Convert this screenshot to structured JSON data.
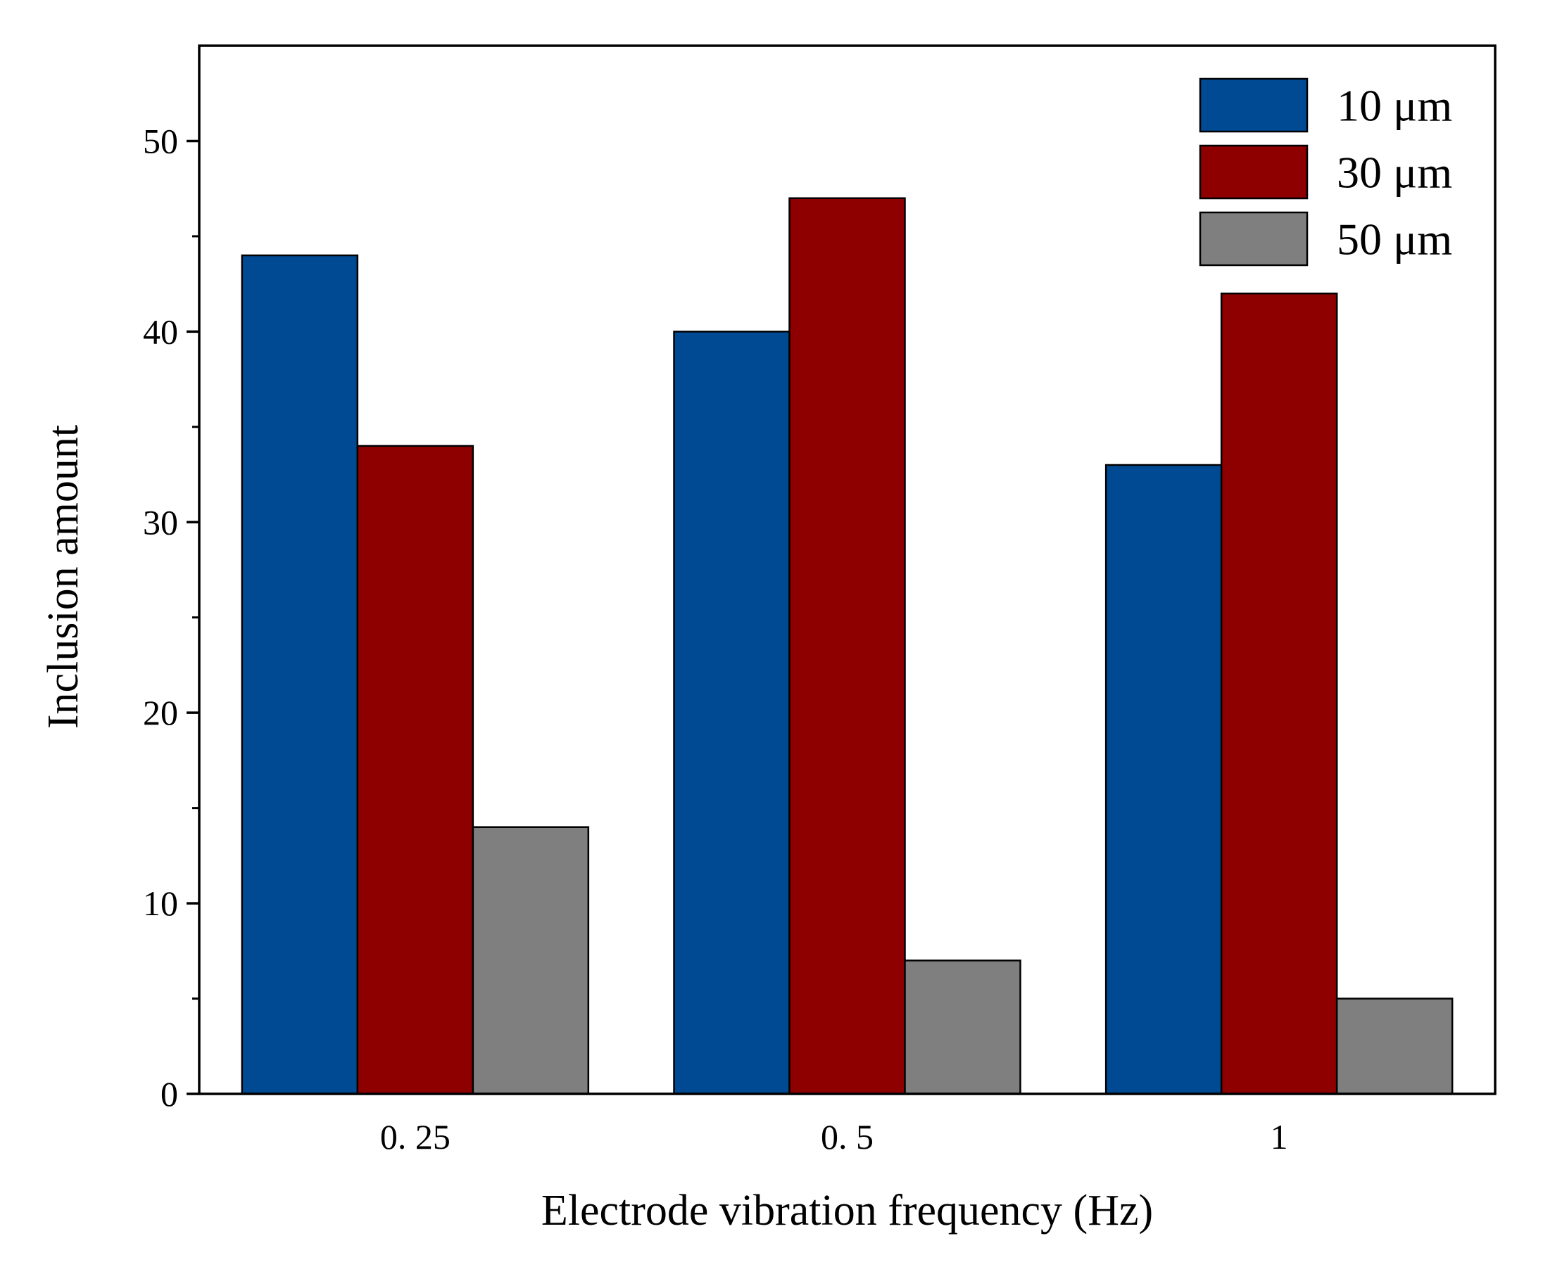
{
  "chart_data": {
    "type": "bar",
    "title": "",
    "xlabel": "Electrode vibration frequency (Hz)",
    "ylabel": "Inclusion amount",
    "categories": [
      "0. 25",
      "0. 5",
      "1"
    ],
    "series": [
      {
        "name": "10 μm",
        "values": [
          44,
          40,
          33
        ],
        "color": "#004A94"
      },
      {
        "name": "30 μm",
        "values": [
          34,
          47,
          42
        ],
        "color": "#8E0000"
      },
      {
        "name": "50 μm",
        "values": [
          14,
          7,
          5
        ],
        "color": "#7F7F7F"
      }
    ],
    "ylim": [
      0,
      55
    ],
    "yticks": [
      0,
      10,
      20,
      30,
      40,
      50
    ],
    "yticks_labels": [
      "0",
      "10",
      "20",
      "30",
      "40",
      "50"
    ],
    "minor_yticks": [
      5,
      15,
      25,
      35,
      45
    ],
    "grid": false,
    "legend_position": "top-right"
  }
}
